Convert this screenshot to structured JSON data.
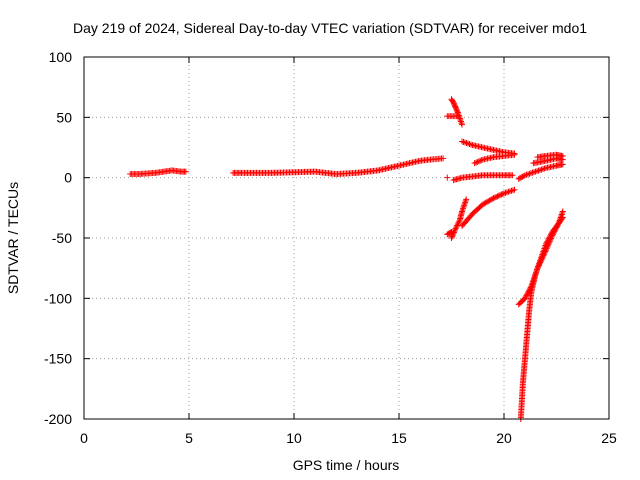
{
  "chart_data": {
    "type": "scatter",
    "title": "Day 219 of 2024, Sidereal Day-to-day VTEC variation (SDTVAR) for receiver mdo1",
    "xlabel": "GPS time / hours",
    "ylabel": "SDTVAR / TECUs",
    "xlim": [
      0,
      25
    ],
    "ylim": [
      -200,
      100
    ],
    "xticks": [
      0,
      5,
      10,
      15,
      20,
      25
    ],
    "yticks": [
      -200,
      -150,
      -100,
      -50,
      0,
      50,
      100
    ],
    "grid": true,
    "marker": "+",
    "color": "#ff0000",
    "series": [
      {
        "name": "SDTVAR",
        "segments": [
          {
            "x": [
              2.2,
              2.6,
              3.0,
              3.4,
              3.8,
              4.2,
              4.6,
              4.85
            ],
            "y": [
              3,
              3,
              3.5,
              4,
              5,
              6,
              5,
              5
            ]
          },
          {
            "x": [
              7.1,
              7.5,
              8.0,
              9.0,
              10.0,
              11.0,
              11.5,
              12.0,
              12.5,
              13.0,
              13.5,
              14.0,
              14.5,
              15.0,
              15.5,
              16.0,
              16.5,
              17.1
            ],
            "y": [
              4,
              4,
              4,
              4,
              4.5,
              5,
              4,
              3,
              3.5,
              4,
              5,
              6,
              8,
              10,
              12,
              14,
              15,
              16
            ]
          },
          {
            "x": [
              17.3,
              17.8
            ],
            "y": [
              51,
              51
            ]
          },
          {
            "x": [
              17.5,
              17.6,
              17.7,
              17.8,
              17.9,
              18.0
            ],
            "y": [
              65,
              62,
              58,
              54,
              49,
              44
            ]
          },
          {
            "x": [
              18.0,
              18.5,
              19.0,
              19.5,
              20.0,
              20.5
            ],
            "y": [
              30,
              27,
              25,
              23,
              21,
              20
            ]
          },
          {
            "x": [
              17.6,
              18.0,
              18.5,
              19.0,
              19.5,
              20.0,
              20.4
            ],
            "y": [
              -2,
              0,
              1,
              2,
              2,
              2,
              2
            ]
          },
          {
            "x": [
              18.6,
              19.0,
              19.5,
              20.0,
              20.5
            ],
            "y": [
              12,
              15,
              17,
              18,
              19
            ]
          },
          {
            "x": [
              17.3
            ],
            "y": [
              0
            ]
          },
          {
            "x": [
              17.3,
              17.5
            ],
            "y": [
              -47,
              -45
            ]
          },
          {
            "x": [
              17.5,
              17.7,
              17.9,
              18.0,
              18.2
            ],
            "y": [
              -50,
              -42,
              -35,
              -28,
              -18
            ]
          },
          {
            "x": [
              18.0,
              18.5,
              19.0,
              19.5,
              20.0,
              20.5
            ],
            "y": [
              -40,
              -30,
              -22,
              -17,
              -13,
              -10
            ]
          },
          {
            "x": [
              20.7,
              21.0,
              21.5,
              22.0,
              22.5,
              22.8
            ],
            "y": [
              -1,
              2,
              5,
              8,
              10,
              11
            ]
          },
          {
            "x": [
              21.4,
              22.0,
              22.5,
              22.8
            ],
            "y": [
              12,
              14,
              16,
              15
            ]
          },
          {
            "x": [
              21.6,
              22.0,
              22.5,
              22.8
            ],
            "y": [
              17,
              18,
              19,
              18
            ]
          },
          {
            "x": [
              20.7,
              21.0,
              21.3,
              21.6,
              22.0,
              22.3,
              22.6,
              22.8
            ],
            "y": [
              -105,
              -100,
              -90,
              -75,
              -60,
              -48,
              -38,
              -28
            ]
          },
          {
            "x": [
              20.8,
              20.9,
              21.0,
              21.1,
              21.2,
              21.3,
              21.5,
              21.8,
              22.0,
              22.3,
              22.6,
              22.8
            ],
            "y": [
              -200,
              -170,
              -150,
              -130,
              -110,
              -95,
              -80,
              -65,
              -55,
              -45,
              -38,
              -33
            ]
          }
        ]
      }
    ]
  }
}
